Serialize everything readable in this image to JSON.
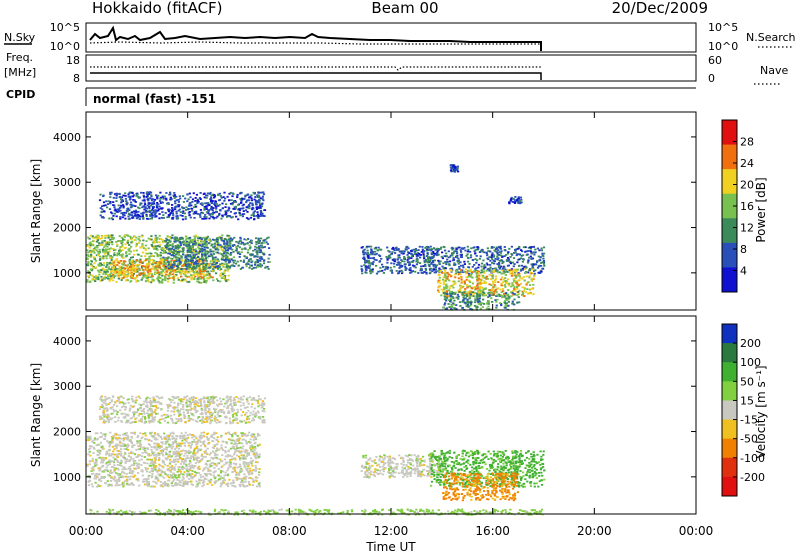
{
  "header": {
    "station": "Hokkaido (fitACF)",
    "beam": "Beam 00",
    "date": "20/Dec/2009"
  },
  "noise_panel": {
    "left_label": "N.Sky",
    "right_label": "N.Search",
    "left_ticks": [
      "10^5",
      "10^0"
    ],
    "right_ticks": [
      "10^5",
      "10^0"
    ]
  },
  "freq_panel": {
    "left_label_1": "Freq.",
    "left_label_2": "[MHz]",
    "right_label": "Nave",
    "left_ticks": [
      "18",
      "8"
    ],
    "right_ticks": [
      "60",
      "0"
    ]
  },
  "cpid": {
    "label": "CPID",
    "value": "normal (fast) -151"
  },
  "power_panel": {
    "ylabel": "Slant Range [km]",
    "colorbar_label": "Power [dB]"
  },
  "velocity_panel": {
    "ylabel": "Slant Range [km]",
    "colorbar_label": "Velocity [m s⁻¹]"
  },
  "xaxis": {
    "label": "Time UT"
  },
  "chart_data": [
    {
      "type": "heatmap",
      "title": "Beam 00",
      "ylabel": "Slant Range [km]",
      "xlabel": "Time UT",
      "x_ticks": [
        "00:00",
        "04:00",
        "08:00",
        "12:00",
        "16:00",
        "20:00",
        "00:00"
      ],
      "x_range_hours": [
        0,
        24
      ],
      "y_ticks": [
        1000,
        2000,
        3000,
        4000
      ],
      "ylim": [
        180,
        4550
      ],
      "colorbar": {
        "label": "Power [dB]",
        "ticks": [
          4,
          8,
          12,
          16,
          20,
          24,
          28
        ],
        "range": [
          0,
          32
        ],
        "colors": [
          "#1010d0",
          "#2850b8",
          "#3a8a5a",
          "#78c050",
          "#f0d020",
          "#f07010",
          "#e01010"
        ]
      },
      "echo_regions": [
        {
          "t_start": 0.0,
          "t_end": 5.6,
          "range_min": 800,
          "range_max": 1850,
          "power_db": 16
        },
        {
          "t_start": 1.0,
          "t_end": 5.0,
          "range_min": 900,
          "range_max": 1300,
          "power_db": 22
        },
        {
          "t_start": 3.0,
          "t_end": 7.2,
          "range_min": 1100,
          "range_max": 1800,
          "power_db": 10
        },
        {
          "t_start": 0.5,
          "t_end": 7.0,
          "range_min": 2200,
          "range_max": 2800,
          "power_db": 6
        },
        {
          "t_start": 10.8,
          "t_end": 18.0,
          "range_min": 1000,
          "range_max": 1600,
          "power_db": 8
        },
        {
          "t_start": 13.8,
          "t_end": 17.6,
          "range_min": 500,
          "range_max": 1100,
          "power_db": 20
        },
        {
          "t_start": 14.0,
          "t_end": 17.0,
          "range_min": 200,
          "range_max": 600,
          "power_db": 12
        },
        {
          "t_start": 14.3,
          "t_end": 14.6,
          "range_min": 3250,
          "range_max": 3400,
          "power_db": 6
        },
        {
          "t_start": 16.6,
          "t_end": 17.1,
          "range_min": 2550,
          "range_max": 2700,
          "power_db": 6
        }
      ]
    },
    {
      "type": "heatmap",
      "ylabel": "Slant Range [km]",
      "xlabel": "Time UT",
      "x_ticks": [
        "00:00",
        "04:00",
        "08:00",
        "12:00",
        "16:00",
        "20:00",
        "00:00"
      ],
      "x_range_hours": [
        0,
        24
      ],
      "y_ticks": [
        1000,
        2000,
        3000,
        4000
      ],
      "ylim": [
        180,
        4550
      ],
      "colorbar": {
        "label": "Velocity [m s⁻¹]",
        "ticks": [
          200,
          100,
          50,
          15,
          -15,
          -50,
          -100,
          -200
        ],
        "colors": [
          "#1030c0",
          "#2a7a40",
          "#40b030",
          "#80d040",
          "#c8c8c0",
          "#f0c020",
          "#f08000",
          "#e03010",
          "#e01010"
        ]
      },
      "echo_regions": [
        {
          "t_start": 0.0,
          "t_end": 6.8,
          "range_min": 800,
          "range_max": 2000,
          "velocity": 0
        },
        {
          "t_start": 0.5,
          "t_end": 7.0,
          "range_min": 2200,
          "range_max": 2800,
          "velocity": 0
        },
        {
          "t_start": 10.8,
          "t_end": 14.0,
          "range_min": 1000,
          "range_max": 1500,
          "velocity": 0
        },
        {
          "t_start": 13.5,
          "t_end": 18.0,
          "range_min": 800,
          "range_max": 1600,
          "velocity": 60
        },
        {
          "t_start": 14.0,
          "t_end": 17.0,
          "range_min": 500,
          "range_max": 1100,
          "velocity": -60
        },
        {
          "t_start": 0.0,
          "t_end": 18.0,
          "range_min": 180,
          "range_max": 300,
          "velocity": 30
        }
      ]
    }
  ]
}
